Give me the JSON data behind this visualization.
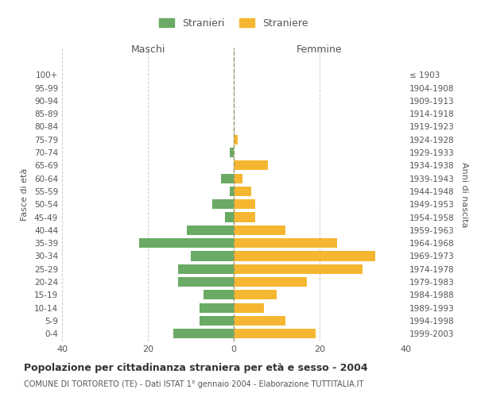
{
  "age_groups": [
    "0-4",
    "5-9",
    "10-14",
    "15-19",
    "20-24",
    "25-29",
    "30-34",
    "35-39",
    "40-44",
    "45-49",
    "50-54",
    "55-59",
    "60-64",
    "65-69",
    "70-74",
    "75-79",
    "80-84",
    "85-89",
    "90-94",
    "95-99",
    "100+"
  ],
  "birth_years": [
    "1999-2003",
    "1994-1998",
    "1989-1993",
    "1984-1988",
    "1979-1983",
    "1974-1978",
    "1969-1973",
    "1964-1968",
    "1959-1963",
    "1954-1958",
    "1949-1953",
    "1944-1948",
    "1939-1943",
    "1934-1938",
    "1929-1933",
    "1924-1928",
    "1919-1923",
    "1914-1918",
    "1909-1913",
    "1904-1908",
    "≤ 1903"
  ],
  "maschi": [
    14,
    8,
    8,
    7,
    13,
    13,
    10,
    22,
    11,
    2,
    5,
    1,
    3,
    0,
    1,
    0,
    0,
    0,
    0,
    0,
    0
  ],
  "femmine": [
    19,
    12,
    7,
    10,
    17,
    30,
    33,
    24,
    12,
    5,
    5,
    4,
    2,
    8,
    0,
    1,
    0,
    0,
    0,
    0,
    0
  ],
  "color_maschi": "#6aaa64",
  "color_femmine": "#f5b731",
  "title": "Popolazione per cittadinanza straniera per età e sesso - 2004",
  "subtitle": "COMUNE DI TORTORETO (TE) - Dati ISTAT 1° gennaio 2004 - Elaborazione TUTTITALIA.IT",
  "ylabel_left": "Fasce di età",
  "ylabel_right": "Anni di nascita",
  "xlabel_maschi": "Maschi",
  "xlabel_femmine": "Femmine",
  "legend_maschi": "Stranieri",
  "legend_femmine": "Straniere",
  "xlim": 40,
  "background_color": "#ffffff",
  "grid_color": "#cccccc"
}
